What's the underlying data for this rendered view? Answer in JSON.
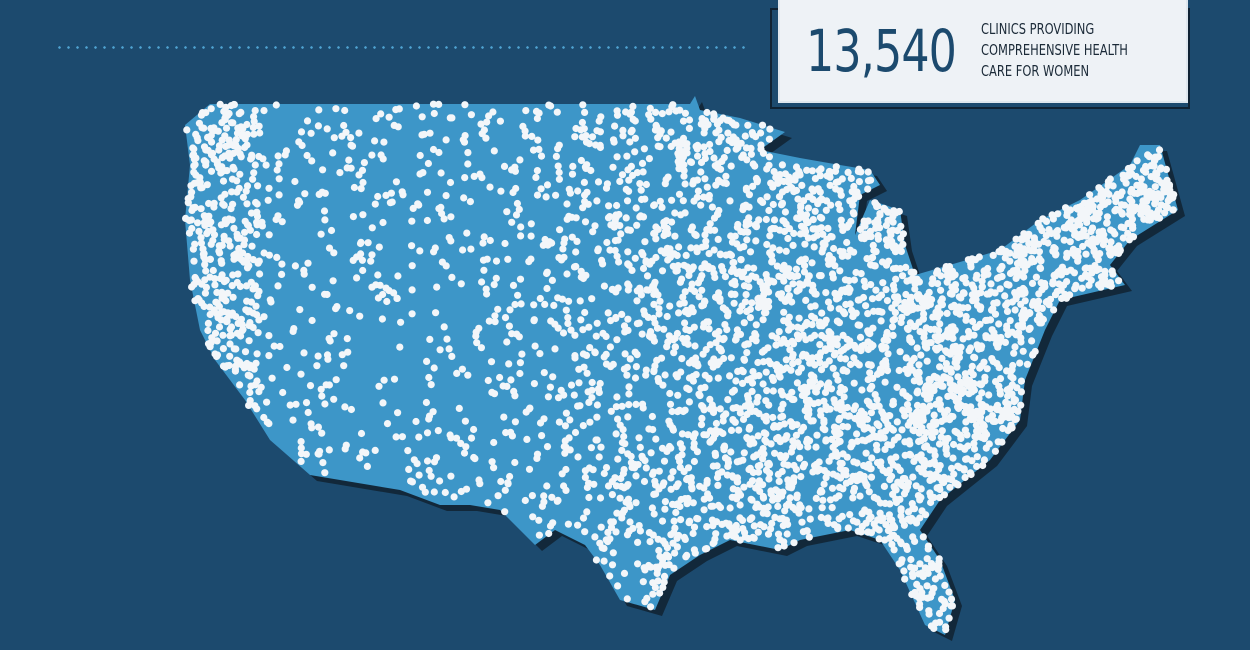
{
  "stat": {
    "number": "13,540",
    "label_lines": [
      "CLINICS PROVIDING",
      "COMPREHENSIVE HEALTH",
      "CARE FOR WOMEN"
    ]
  },
  "map": {
    "region": "contiguous United States",
    "marker": "clinic location dot",
    "colors": {
      "background": "#1c4a6e",
      "land": "#3d96c8",
      "shadow": "#12283a",
      "dots": "#f3f6f9",
      "accent_line": "#4fa3d1"
    }
  }
}
